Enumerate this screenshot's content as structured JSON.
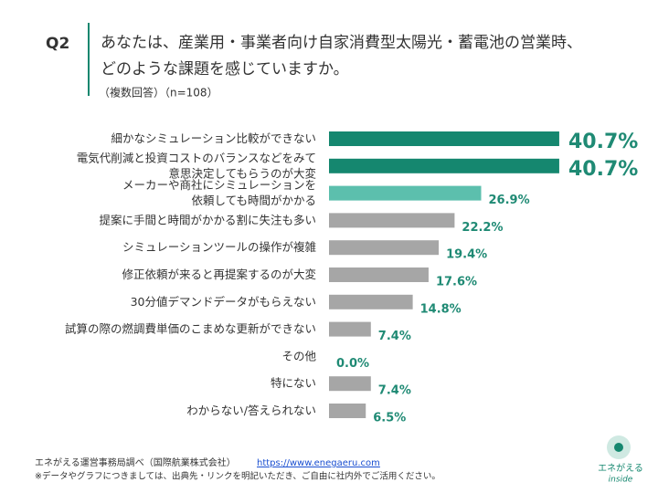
{
  "header": {
    "question": "Q2",
    "title_lines": [
      "あなたは、産業用・事業者向け自家消費型太陽光・蓄電池の営業時、",
      "どのような課題を感じていますか。"
    ],
    "subtitle": "（複数回答）（n=108）"
  },
  "chart_data": {
    "type": "bar",
    "orientation": "horizontal",
    "categories": [
      "細かなシミュレーション比較ができない",
      "電気代削減と投資コストのバランスなどをみて\n意思決定してもらうのが大変",
      "メーカーや商社にシミュレーションを\n依頼しても時間がかかる",
      "提案に手間と時間がかかる割に失注も多い",
      "シミュレーションツールの操作が複雑",
      "修正依頼が来ると再提案するのが大変",
      "30分値デマンドデータがもらえない",
      "試算の際の燃調費単価のこまめな更新ができない",
      "その他",
      "特にない",
      "わからない/答えられない"
    ],
    "values": [
      40.7,
      40.7,
      26.9,
      22.2,
      19.4,
      17.6,
      14.8,
      7.4,
      0.0,
      7.4,
      6.5
    ],
    "value_labels": [
      "40.7%",
      "40.7%",
      "26.9%",
      "22.2%",
      "19.4%",
      "17.6%",
      "14.8%",
      "7.4%",
      "0.0%",
      "7.4%",
      "6.5%"
    ],
    "colors": [
      "#15876f",
      "#15876f",
      "#5cbfad",
      "#a6a6a6",
      "#a6a6a6",
      "#a6a6a6",
      "#a6a6a6",
      "#a6a6a6",
      "#a6a6a6",
      "#a6a6a6",
      "#a6a6a6"
    ],
    "label_color": "#1f8a74"
  },
  "footer": {
    "source": "エネがえる運営事務局調べ（国際航業株式会社）",
    "link": "https://www.enegaeru.com",
    "note": "※データやグラフにつきましては、出典先・リンクを明記いただき、ご自由に社内外でご活用ください。"
  },
  "logo": {
    "name": "エネがえる",
    "tag": "inside"
  }
}
